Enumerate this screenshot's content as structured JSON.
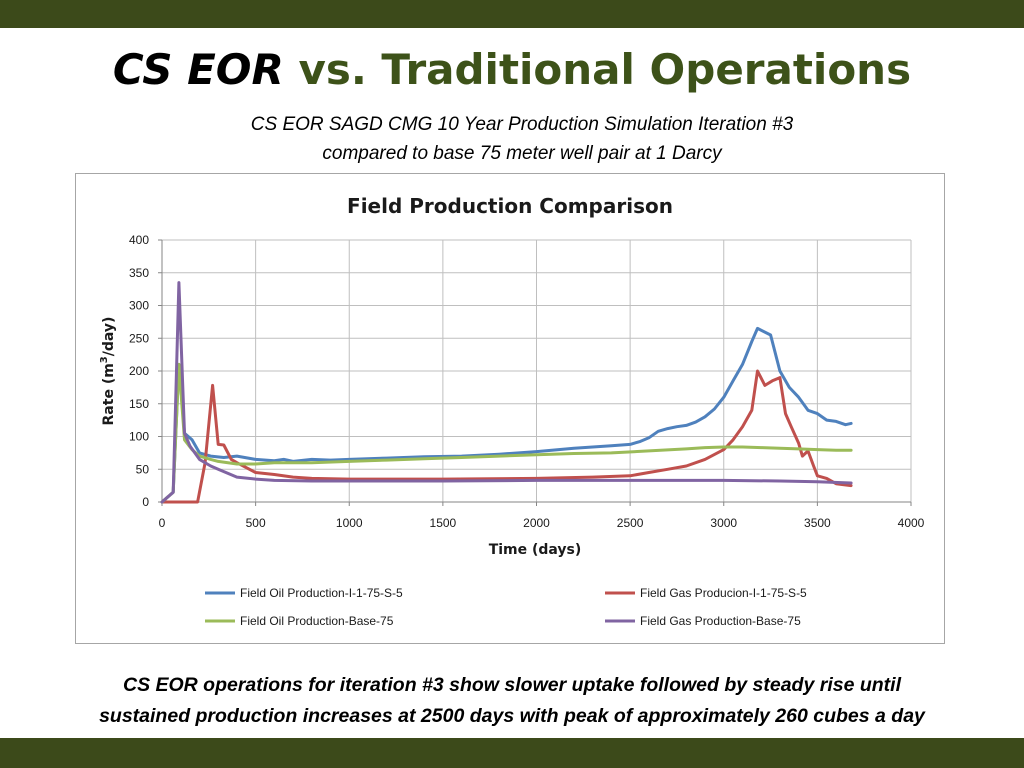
{
  "slide": {
    "title_part1": "CS EOR",
    "title_part2": " vs. Traditional Operations",
    "subtitle_line1": "CS EOR SAGD CMG 10 Year Production Simulation Iteration #3",
    "subtitle_line2": "compared to base 75 meter well pair at 1 Darcy",
    "caption_line1": "CS EOR operations for iteration #3 show slower uptake followed by steady rise until",
    "caption_line2": "sustained production increases at 2500 days with peak of approximately 260 cubes a day",
    "band_color": "#3c4a1a"
  },
  "chart_data": {
    "type": "line",
    "title": "Field Production Comparison",
    "xlabel": "Time (days)",
    "ylabel_main": "Rate  (m",
    "ylabel_sup": "3",
    "ylabel_tail": "/day)",
    "xlim": [
      0,
      4000
    ],
    "ylim": [
      0,
      400
    ],
    "x_ticks": [
      0,
      500,
      1000,
      1500,
      2000,
      2500,
      3000,
      3500,
      4000
    ],
    "x_tick_labels": [
      "0",
      "500",
      "1000",
      "1500",
      "2000",
      "2500",
      "3000",
      "3500",
      "4000"
    ],
    "y_ticks": [
      0,
      50,
      100,
      150,
      200,
      250,
      300,
      350,
      400
    ],
    "y_tick_labels": [
      "0",
      "50",
      "100",
      "150",
      "200",
      "250",
      "300",
      "350",
      "400"
    ],
    "grid": true,
    "legend_position": "bottom",
    "series": [
      {
        "name": "Field Oil Production-I-1-75-S-5",
        "color": "#4f81bd",
        "points": [
          [
            0,
            0
          ],
          [
            60,
            15
          ],
          [
            90,
            210
          ],
          [
            120,
            105
          ],
          [
            160,
            95
          ],
          [
            200,
            75
          ],
          [
            260,
            70
          ],
          [
            330,
            68
          ],
          [
            400,
            70
          ],
          [
            500,
            65
          ],
          [
            600,
            63
          ],
          [
            650,
            65
          ],
          [
            700,
            62
          ],
          [
            800,
            65
          ],
          [
            900,
            64
          ],
          [
            1000,
            65
          ],
          [
            1200,
            67
          ],
          [
            1400,
            69
          ],
          [
            1600,
            70
          ],
          [
            1800,
            73
          ],
          [
            2000,
            77
          ],
          [
            2200,
            82
          ],
          [
            2400,
            86
          ],
          [
            2500,
            88
          ],
          [
            2550,
            92
          ],
          [
            2600,
            98
          ],
          [
            2650,
            108
          ],
          [
            2700,
            112
          ],
          [
            2750,
            115
          ],
          [
            2800,
            117
          ],
          [
            2850,
            122
          ],
          [
            2900,
            130
          ],
          [
            2950,
            142
          ],
          [
            3000,
            160
          ],
          [
            3050,
            185
          ],
          [
            3100,
            210
          ],
          [
            3150,
            245
          ],
          [
            3180,
            265
          ],
          [
            3250,
            255
          ],
          [
            3300,
            200
          ],
          [
            3350,
            175
          ],
          [
            3400,
            160
          ],
          [
            3450,
            140
          ],
          [
            3500,
            135
          ],
          [
            3550,
            125
          ],
          [
            3600,
            123
          ],
          [
            3650,
            118
          ],
          [
            3680,
            120
          ]
        ]
      },
      {
        "name": "Field Gas Producion-I-1-75-S-5",
        "color": "#c0504d",
        "points": [
          [
            0,
            0
          ],
          [
            150,
            0
          ],
          [
            190,
            0
          ],
          [
            230,
            60
          ],
          [
            270,
            178
          ],
          [
            300,
            88
          ],
          [
            330,
            87
          ],
          [
            370,
            65
          ],
          [
            400,
            60
          ],
          [
            500,
            45
          ],
          [
            600,
            42
          ],
          [
            700,
            38
          ],
          [
            800,
            36
          ],
          [
            1000,
            35
          ],
          [
            1500,
            35
          ],
          [
            2000,
            36
          ],
          [
            2300,
            38
          ],
          [
            2500,
            40
          ],
          [
            2600,
            45
          ],
          [
            2700,
            50
          ],
          [
            2800,
            55
          ],
          [
            2900,
            65
          ],
          [
            3000,
            80
          ],
          [
            3050,
            95
          ],
          [
            3100,
            115
          ],
          [
            3150,
            140
          ],
          [
            3180,
            200
          ],
          [
            3220,
            178
          ],
          [
            3260,
            185
          ],
          [
            3300,
            190
          ],
          [
            3330,
            135
          ],
          [
            3360,
            115
          ],
          [
            3400,
            90
          ],
          [
            3420,
            70
          ],
          [
            3450,
            78
          ],
          [
            3480,
            55
          ],
          [
            3500,
            40
          ],
          [
            3550,
            36
          ],
          [
            3600,
            28
          ],
          [
            3680,
            25
          ]
        ]
      },
      {
        "name": "Field Oil Production-Base-75",
        "color": "#9bbb59",
        "points": [
          [
            0,
            0
          ],
          [
            60,
            15
          ],
          [
            90,
            210
          ],
          [
            120,
            95
          ],
          [
            160,
            80
          ],
          [
            200,
            70
          ],
          [
            260,
            65
          ],
          [
            300,
            62
          ],
          [
            400,
            58
          ],
          [
            500,
            58
          ],
          [
            600,
            60
          ],
          [
            700,
            60
          ],
          [
            800,
            60
          ],
          [
            1000,
            62
          ],
          [
            1200,
            64
          ],
          [
            1400,
            66
          ],
          [
            1600,
            68
          ],
          [
            1800,
            70
          ],
          [
            2000,
            72
          ],
          [
            2200,
            74
          ],
          [
            2400,
            75
          ],
          [
            2600,
            78
          ],
          [
            2800,
            81
          ],
          [
            2900,
            83
          ],
          [
            3000,
            84
          ],
          [
            3100,
            84
          ],
          [
            3200,
            83
          ],
          [
            3300,
            82
          ],
          [
            3400,
            81
          ],
          [
            3500,
            80
          ],
          [
            3600,
            79
          ],
          [
            3680,
            79
          ]
        ]
      },
      {
        "name": "Field Gas Production-Base-75",
        "color": "#8064a2",
        "points": [
          [
            0,
            0
          ],
          [
            60,
            15
          ],
          [
            90,
            335
          ],
          [
            120,
            105
          ],
          [
            150,
            85
          ],
          [
            200,
            65
          ],
          [
            260,
            55
          ],
          [
            300,
            50
          ],
          [
            400,
            38
          ],
          [
            500,
            35
          ],
          [
            600,
            33
          ],
          [
            800,
            32
          ],
          [
            1000,
            32
          ],
          [
            1500,
            32
          ],
          [
            2000,
            33
          ],
          [
            2500,
            33
          ],
          [
            3000,
            33
          ],
          [
            3300,
            32
          ],
          [
            3500,
            31
          ],
          [
            3680,
            29
          ]
        ]
      }
    ]
  }
}
